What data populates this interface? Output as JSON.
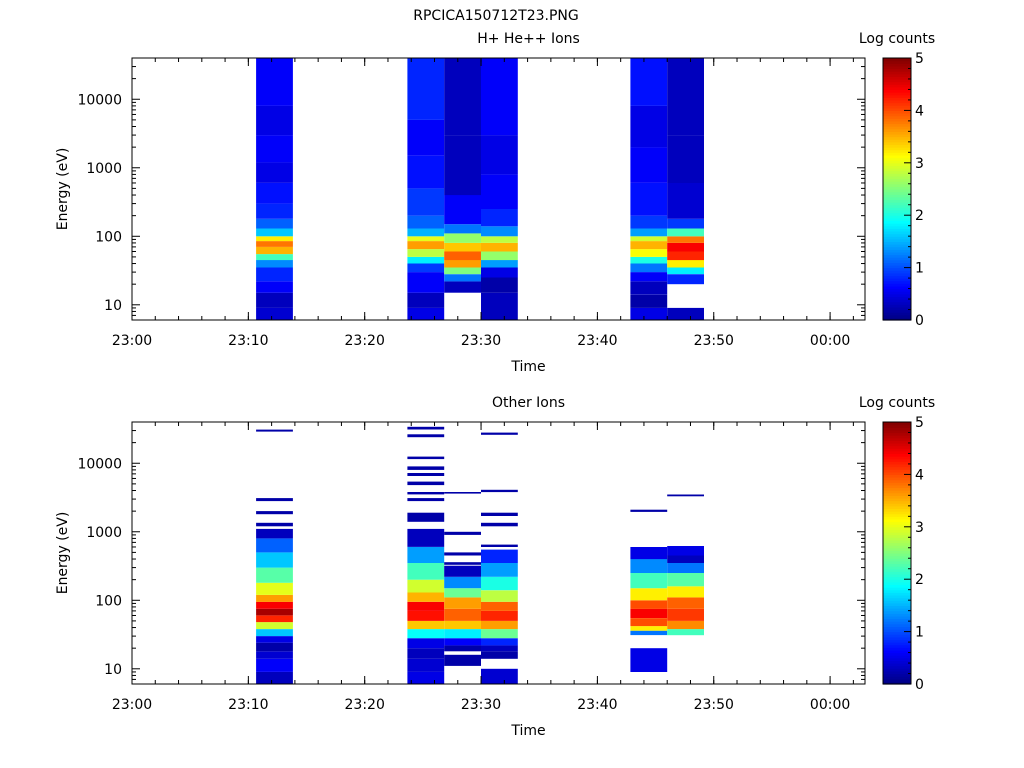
{
  "figure_title": "RPCICA150712T23.PNG",
  "chart_data": [
    {
      "type": "heatmap",
      "title": "H+ He++ Ions",
      "xlabel": "Time",
      "ylabel": "Energy (eV)",
      "x_ticks": [
        "23:00",
        "23:10",
        "23:20",
        "23:30",
        "23:40",
        "23:50",
        "00:00"
      ],
      "y_ticks": [
        "10",
        "100",
        "1000",
        "10000"
      ],
      "y_scale": "log",
      "ylim": [
        6,
        40000
      ],
      "xlim": [
        "23:00",
        "00:03"
      ],
      "colorbar": {
        "label": "Log counts",
        "ticks": [
          "0",
          "1",
          "2",
          "3",
          "4",
          "5"
        ],
        "range": [
          0,
          5
        ]
      },
      "columns": [
        {
          "start": "23:10:40",
          "end": "23:13:50",
          "bins": [
            [
              6,
              9,
              0.4
            ],
            [
              9,
              15,
              0.3
            ],
            [
              15,
              22,
              0.6
            ],
            [
              22,
              35,
              0.8
            ],
            [
              35,
              45,
              1.3
            ],
            [
              45,
              55,
              2.2
            ],
            [
              55,
              70,
              3.5
            ],
            [
              70,
              85,
              3.8
            ],
            [
              85,
              100,
              3.2
            ],
            [
              100,
              130,
              1.6
            ],
            [
              130,
              180,
              1.1
            ],
            [
              180,
              300,
              0.8
            ],
            [
              300,
              600,
              0.7
            ],
            [
              600,
              1200,
              0.5
            ],
            [
              1200,
              3000,
              0.6
            ],
            [
              3000,
              8000,
              0.5
            ],
            [
              8000,
              40000,
              0.6
            ]
          ]
        },
        {
          "start": "23:23:40",
          "end": "23:26:50",
          "bins": [
            [
              6,
              9,
              0.5
            ],
            [
              9,
              15,
              0.3
            ],
            [
              15,
              30,
              0.6
            ],
            [
              30,
              40,
              0.9
            ],
            [
              40,
              50,
              1.8
            ],
            [
              50,
              65,
              2.8
            ],
            [
              65,
              85,
              3.6
            ],
            [
              85,
              100,
              3.0
            ],
            [
              100,
              130,
              1.5
            ],
            [
              130,
              200,
              1.1
            ],
            [
              200,
              500,
              0.9
            ],
            [
              500,
              1500,
              0.7
            ],
            [
              1500,
              5000,
              0.6
            ],
            [
              5000,
              40000,
              0.8
            ]
          ]
        },
        {
          "start": "23:26:50",
          "end": "23:30:00",
          "bins": [
            [
              15,
              22,
              0.3
            ],
            [
              22,
              28,
              1.2
            ],
            [
              28,
              35,
              2.5
            ],
            [
              35,
              45,
              3.6
            ],
            [
              45,
              60,
              3.9
            ],
            [
              60,
              80,
              3.4
            ],
            [
              80,
              110,
              2.6
            ],
            [
              110,
              150,
              1.2
            ],
            [
              150,
              400,
              0.6
            ],
            [
              400,
              3000,
              0.3
            ],
            [
              3000,
              40000,
              0.3
            ]
          ]
        },
        {
          "start": "23:30:00",
          "end": "23:33:10",
          "bins": [
            [
              6,
              15,
              0.3
            ],
            [
              15,
              25,
              0.2
            ],
            [
              25,
              35,
              0.5
            ],
            [
              35,
              45,
              1.4
            ],
            [
              45,
              60,
              2.6
            ],
            [
              60,
              80,
              3.5
            ],
            [
              80,
              100,
              2.8
            ],
            [
              100,
              140,
              1.3
            ],
            [
              140,
              250,
              0.8
            ],
            [
              250,
              800,
              0.6
            ],
            [
              800,
              3000,
              0.5
            ],
            [
              3000,
              40000,
              0.6
            ]
          ]
        },
        {
          "start": "23:42:50",
          "end": "23:46:00",
          "bins": [
            [
              6,
              9,
              0.5
            ],
            [
              9,
              14,
              0.2
            ],
            [
              14,
              22,
              0.3
            ],
            [
              22,
              30,
              0.6
            ],
            [
              30,
              40,
              1.2
            ],
            [
              40,
              50,
              2.0
            ],
            [
              50,
              65,
              3.1
            ],
            [
              65,
              85,
              3.5
            ],
            [
              85,
              100,
              2.9
            ],
            [
              100,
              130,
              1.4
            ],
            [
              130,
              200,
              0.9
            ],
            [
              200,
              600,
              0.7
            ],
            [
              600,
              2000,
              0.6
            ],
            [
              2000,
              8000,
              0.5
            ],
            [
              8000,
              40000,
              0.7
            ]
          ]
        },
        {
          "start": "23:46:00",
          "end": "23:49:10",
          "bins": [
            [
              6,
              9,
              0.3
            ],
            [
              20,
              28,
              0.8
            ],
            [
              28,
              35,
              1.8
            ],
            [
              35,
              45,
              3.2
            ],
            [
              45,
              60,
              4.2
            ],
            [
              60,
              80,
              4.4
            ],
            [
              80,
              100,
              3.8
            ],
            [
              100,
              130,
              2.2
            ],
            [
              130,
              180,
              0.9
            ],
            [
              180,
              600,
              0.4
            ],
            [
              600,
              3000,
              0.3
            ],
            [
              3000,
              40000,
              0.3
            ]
          ]
        }
      ]
    },
    {
      "type": "heatmap",
      "title": "Other Ions",
      "xlabel": "Time",
      "ylabel": "Energy (eV)",
      "x_ticks": [
        "23:00",
        "23:10",
        "23:20",
        "23:30",
        "23:40",
        "23:50",
        "00:00"
      ],
      "y_ticks": [
        "10",
        "100",
        "1000",
        "10000"
      ],
      "y_scale": "log",
      "ylim": [
        6,
        40000
      ],
      "xlim": [
        "23:00",
        "00:03"
      ],
      "colorbar": {
        "label": "Log counts",
        "ticks": [
          "0",
          "1",
          "2",
          "3",
          "4",
          "5"
        ],
        "range": [
          0,
          5
        ]
      },
      "columns": [
        {
          "start": "23:10:40",
          "end": "23:13:50",
          "bins": [
            [
              6,
              9,
              0.3
            ],
            [
              9,
              14,
              0.6
            ],
            [
              14,
              18,
              0.4
            ],
            [
              18,
              24,
              0.2
            ],
            [
              24,
              30,
              0.5
            ],
            [
              30,
              38,
              1.6
            ],
            [
              38,
              48,
              2.9
            ],
            [
              48,
              60,
              4.2
            ],
            [
              60,
              75,
              4.8
            ],
            [
              75,
              95,
              4.4
            ],
            [
              95,
              120,
              3.6
            ],
            [
              120,
              180,
              3.0
            ],
            [
              180,
              300,
              2.3
            ],
            [
              300,
              500,
              1.6
            ],
            [
              500,
              800,
              1.1
            ],
            [
              800,
              1100,
              0.3
            ],
            [
              1200,
              1350,
              0.2
            ],
            [
              1800,
              2000,
              0.2
            ],
            [
              2800,
              3100,
              0.2
            ],
            [
              29000,
              31000,
              0.2
            ]
          ]
        },
        {
          "start": "23:23:40",
          "end": "23:26:50",
          "bins": [
            [
              6,
              9,
              0.5
            ],
            [
              9,
              14,
              0.4
            ],
            [
              14,
              20,
              0.3
            ],
            [
              20,
              28,
              0.5
            ],
            [
              28,
              38,
              1.9
            ],
            [
              38,
              50,
              3.4
            ],
            [
              50,
              70,
              4.3
            ],
            [
              70,
              95,
              4.4
            ],
            [
              95,
              130,
              3.5
            ],
            [
              130,
              200,
              2.9
            ],
            [
              200,
              350,
              2.2
            ],
            [
              350,
              600,
              1.4
            ],
            [
              600,
              1100,
              0.3
            ],
            [
              1400,
              1900,
              0.2
            ],
            [
              2800,
              3100,
              0.2
            ],
            [
              3500,
              3800,
              0.2
            ],
            [
              4800,
              5400,
              0.2
            ],
            [
              6500,
              7200,
              0.2
            ],
            [
              8000,
              9000,
              0.2
            ],
            [
              11500,
              12500,
              0.2
            ],
            [
              24000,
              26500,
              0.2
            ],
            [
              31000,
              34000,
              0.2
            ]
          ]
        },
        {
          "start": "23:26:50",
          "end": "23:30:00",
          "bins": [
            [
              11,
              16,
              0.2
            ],
            [
              18,
              22,
              0.2
            ],
            [
              22,
              28,
              0.6
            ],
            [
              28,
              38,
              1.8
            ],
            [
              38,
              50,
              3.4
            ],
            [
              50,
              75,
              3.9
            ],
            [
              75,
              110,
              3.6
            ],
            [
              110,
              150,
              2.4
            ],
            [
              150,
              220,
              1.3
            ],
            [
              220,
              320,
              0.3
            ],
            [
              330,
              360,
              0.2
            ],
            [
              450,
              500,
              0.2
            ],
            [
              900,
              1000,
              0.2
            ],
            [
              3600,
              3800,
              0.2
            ]
          ]
        },
        {
          "start": "23:30:00",
          "end": "23:33:10",
          "bins": [
            [
              6,
              10,
              0.4
            ],
            [
              14,
              18,
              0.2
            ],
            [
              18,
              22,
              0.3
            ],
            [
              22,
              28,
              0.8
            ],
            [
              28,
              38,
              2.4
            ],
            [
              38,
              50,
              3.6
            ],
            [
              50,
              70,
              4.2
            ],
            [
              70,
              95,
              3.9
            ],
            [
              95,
              140,
              2.8
            ],
            [
              140,
              220,
              2.0
            ],
            [
              220,
              350,
              1.4
            ],
            [
              350,
              550,
              0.8
            ],
            [
              600,
              650,
              0.2
            ],
            [
              1200,
              1350,
              0.2
            ],
            [
              1700,
              1900,
              0.2
            ],
            [
              3800,
              4100,
              0.2
            ],
            [
              26000,
              28000,
              0.2
            ]
          ]
        },
        {
          "start": "23:42:50",
          "end": "23:46:00",
          "bins": [
            [
              9,
              20,
              0.5
            ],
            [
              31,
              36,
              1.2
            ],
            [
              36,
              42,
              3.2
            ],
            [
              42,
              55,
              4.0
            ],
            [
              55,
              75,
              4.4
            ],
            [
              75,
              100,
              4.0
            ],
            [
              100,
              150,
              3.2
            ],
            [
              150,
              250,
              2.2
            ],
            [
              250,
              400,
              1.3
            ],
            [
              400,
              600,
              0.5
            ],
            [
              1950,
              2100,
              0.2
            ]
          ]
        },
        {
          "start": "23:46:00",
          "end": "23:49:10",
          "bins": [
            [
              31,
              38,
              2.2
            ],
            [
              38,
              50,
              3.7
            ],
            [
              50,
              75,
              4.1
            ],
            [
              75,
              110,
              3.9
            ],
            [
              110,
              160,
              3.2
            ],
            [
              160,
              250,
              2.3
            ],
            [
              250,
              350,
              1.2
            ],
            [
              350,
              450,
              0.3
            ],
            [
              450,
              620,
              0.5
            ],
            [
              3300,
              3500,
              0.2
            ]
          ]
        }
      ]
    }
  ]
}
